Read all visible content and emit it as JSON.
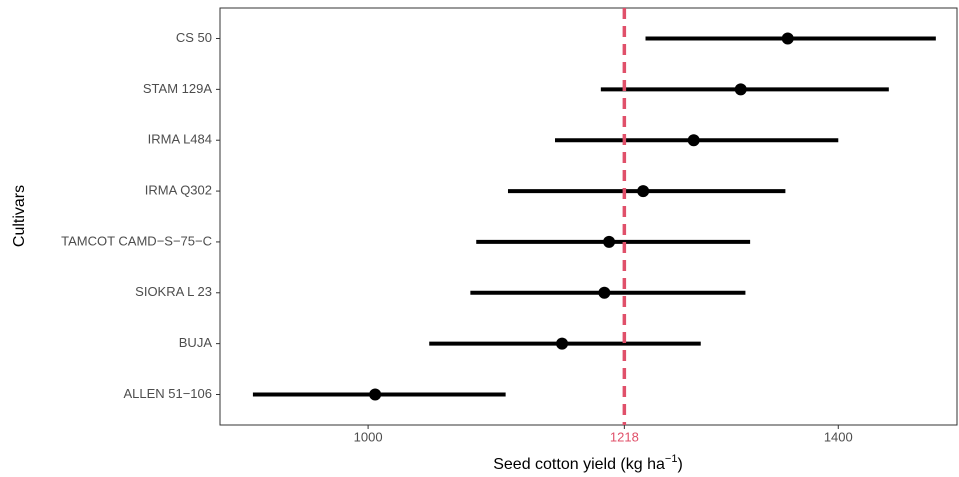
{
  "chart_data": {
    "type": "pointrange",
    "categories": [
      "CS 50",
      "STAM 129A",
      "IRMA L484",
      "IRMA Q302",
      "TAMCOT CAMD−S−75−C",
      "SIOKRA L 23",
      "BUJA",
      "ALLEN 51−106"
    ],
    "values": [
      1357,
      1317,
      1277,
      1234,
      1205,
      1201,
      1165,
      1006
    ],
    "low": [
      1236,
      1198,
      1159,
      1119,
      1092,
      1087,
      1052,
      902
    ],
    "high": [
      1483,
      1443,
      1400,
      1355,
      1325,
      1321,
      1283,
      1117
    ],
    "color": "#000000",
    "xlim": [
      874,
      1501
    ],
    "xticks": [
      1000,
      1218,
      1400
    ],
    "reference_line": {
      "value": 1218,
      "color": "#e0506a"
    },
    "x_label": [
      "Seed cotton yield (kg ha",
      "−1",
      ")"
    ],
    "y_label": "Cultivars"
  }
}
